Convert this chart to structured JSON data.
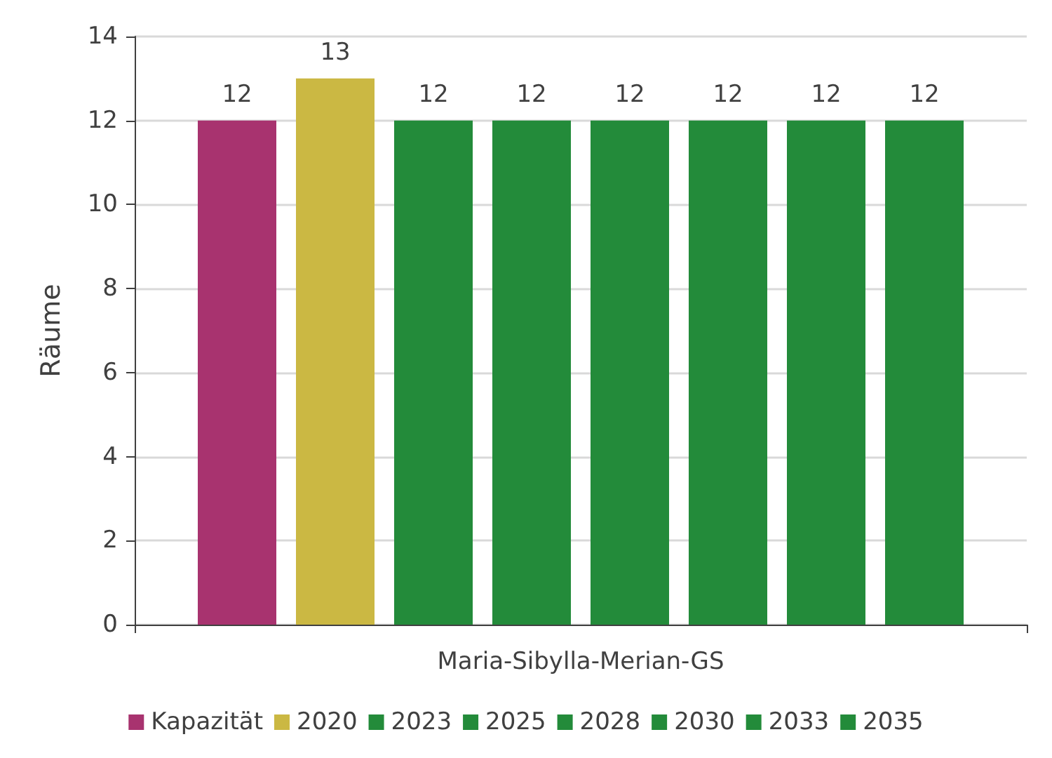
{
  "chart_data": {
    "type": "bar",
    "ylabel": "Räume",
    "categories": [
      "Maria-Sibylla-Merian-GS"
    ],
    "series": [
      {
        "name": "Kapazität",
        "color": "#a8336f",
        "values": [
          12
        ]
      },
      {
        "name": "2020",
        "color": "#cbb843",
        "values": [
          13
        ]
      },
      {
        "name": "2023",
        "color": "#238b3a",
        "values": [
          12
        ]
      },
      {
        "name": "2025",
        "color": "#238b3a",
        "values": [
          12
        ]
      },
      {
        "name": "2028",
        "color": "#238b3a",
        "values": [
          12
        ]
      },
      {
        "name": "2030",
        "color": "#238b3a",
        "values": [
          12
        ]
      },
      {
        "name": "2033",
        "color": "#238b3a",
        "values": [
          12
        ]
      },
      {
        "name": "2035",
        "color": "#238b3a",
        "values": [
          12
        ]
      }
    ],
    "ylim": [
      0,
      14
    ],
    "yticks": [
      0,
      2,
      4,
      6,
      8,
      10,
      12,
      14
    ],
    "grid": "y",
    "legend": "bottom",
    "data_labels": true
  }
}
